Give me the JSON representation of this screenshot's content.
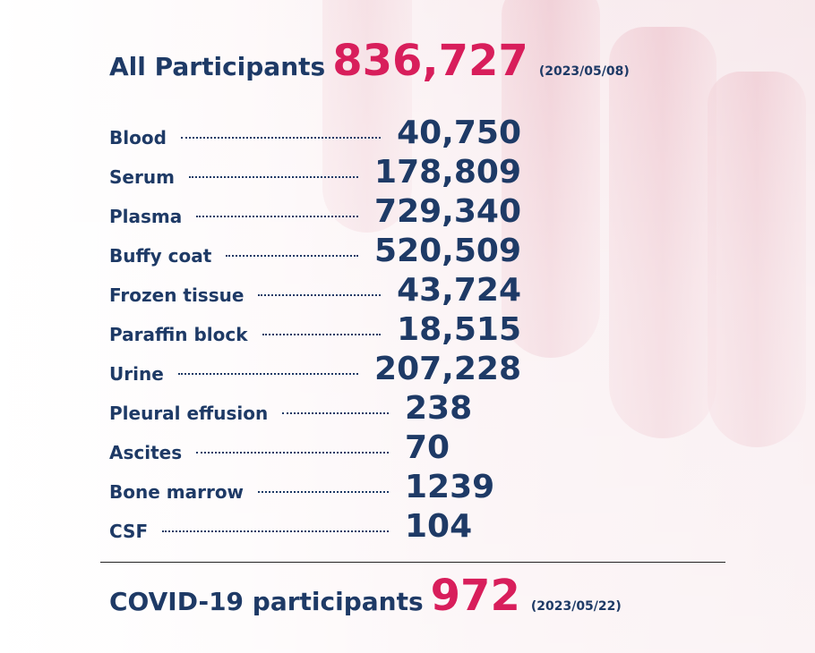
{
  "header": {
    "label": "All Participants",
    "value": "836,727",
    "date": "(2023/05/08)"
  },
  "specimens": [
    {
      "label": "Blood",
      "value": "40,750"
    },
    {
      "label": "Serum",
      "value": "178,809"
    },
    {
      "label": "Plasma",
      "value": "729,340"
    },
    {
      "label": "Buffy coat",
      "value": "520,509"
    },
    {
      "label": "Frozen tissue",
      "value": "43,724"
    },
    {
      "label": "Paraffin block",
      "value": "18,515"
    },
    {
      "label": "Urine",
      "value": "207,228"
    },
    {
      "label": "Pleural effusion",
      "value": "238"
    },
    {
      "label": "Ascites",
      "value": "70"
    },
    {
      "label": "Bone marrow",
      "value": "1239"
    },
    {
      "label": "CSF",
      "value": "104"
    }
  ],
  "covid": {
    "label": "COVID-19 participants",
    "value": "972",
    "date": "(2023/05/22)"
  },
  "colors": {
    "text": "#1e3a66",
    "accent": "#d81e5b"
  }
}
